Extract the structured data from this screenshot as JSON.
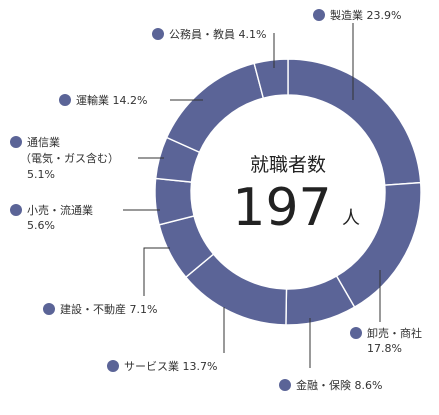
{
  "chart_data": {
    "type": "pie",
    "style": "donut",
    "color": "#5b6497",
    "center": {
      "title": "就職者数",
      "value": "197",
      "unit": "人"
    },
    "slices": [
      {
        "label": "製造業",
        "value": 23.9,
        "value_label": "23.9%"
      },
      {
        "label": "卸売・商社",
        "value": 17.8,
        "value_label": "17.8%"
      },
      {
        "label": "金融・保険",
        "value": 8.6,
        "value_label": "8.6%"
      },
      {
        "label": "サービス業",
        "value": 13.7,
        "value_label": "13.7%"
      },
      {
        "label": "建設・不動産",
        "value": 7.1,
        "value_label": "7.1%"
      },
      {
        "label": "小売・流通業",
        "value": 5.6,
        "value_label": "5.6%"
      },
      {
        "label": "通信業",
        "sublabel": "（電気・ガス含む）",
        "value": 5.1,
        "value_label": "5.1%"
      },
      {
        "label": "運輸業",
        "value": 14.2,
        "value_label": "14.2%"
      },
      {
        "label": "公務員・教員",
        "value": 4.1,
        "value_label": "4.1%"
      }
    ]
  }
}
